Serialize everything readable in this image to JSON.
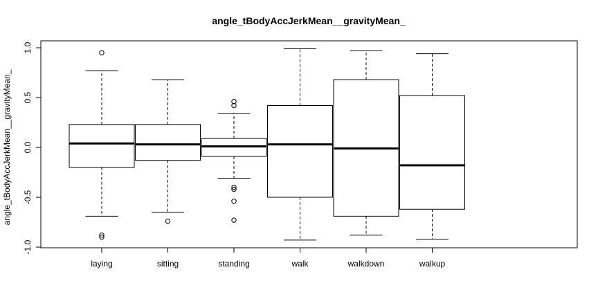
{
  "chart_data": {
    "type": "box",
    "title": "angle_tBodyAccJerkMean__gravityMean_",
    "xlabel": "",
    "ylabel": "angle_tBodyAccJerkMean__gravityMean_",
    "ylim": [
      -1.0,
      1.0
    ],
    "yticks": [
      "-1.0",
      "-0.5",
      "0.0",
      "0.5",
      "1.0"
    ],
    "ytick_values": [
      -1.0,
      -0.5,
      0.0,
      0.5,
      1.0
    ],
    "grid": false,
    "categories": [
      "laying",
      "sitting",
      "standing",
      "walk",
      "walkdown",
      "walkup"
    ],
    "boxes": [
      {
        "category": "laying",
        "whisker_low": -0.69,
        "q1": -0.2,
        "median": 0.04,
        "q3": 0.23,
        "whisker_high": 0.77,
        "outliers": [
          0.95,
          -0.88,
          -0.9
        ]
      },
      {
        "category": "sitting",
        "whisker_low": -0.65,
        "q1": -0.13,
        "median": 0.03,
        "q3": 0.23,
        "whisker_high": 0.68,
        "outliers": [
          -0.74
        ]
      },
      {
        "category": "standing",
        "whisker_low": -0.31,
        "q1": -0.09,
        "median": 0.01,
        "q3": 0.09,
        "whisker_high": 0.34,
        "outliers": [
          0.46,
          0.42,
          -0.4,
          -0.42,
          -0.54,
          -0.73
        ]
      },
      {
        "category": "walk",
        "whisker_low": -0.93,
        "q1": -0.5,
        "median": 0.03,
        "q3": 0.42,
        "whisker_high": 0.99,
        "outliers": []
      },
      {
        "category": "walkdown",
        "whisker_low": -0.88,
        "q1": -0.69,
        "median": -0.01,
        "q3": 0.68,
        "whisker_high": 0.97,
        "outliers": []
      },
      {
        "category": "walkup",
        "whisker_low": -0.92,
        "q1": -0.62,
        "median": -0.18,
        "q3": 0.52,
        "whisker_high": 0.94,
        "outliers": []
      }
    ]
  }
}
